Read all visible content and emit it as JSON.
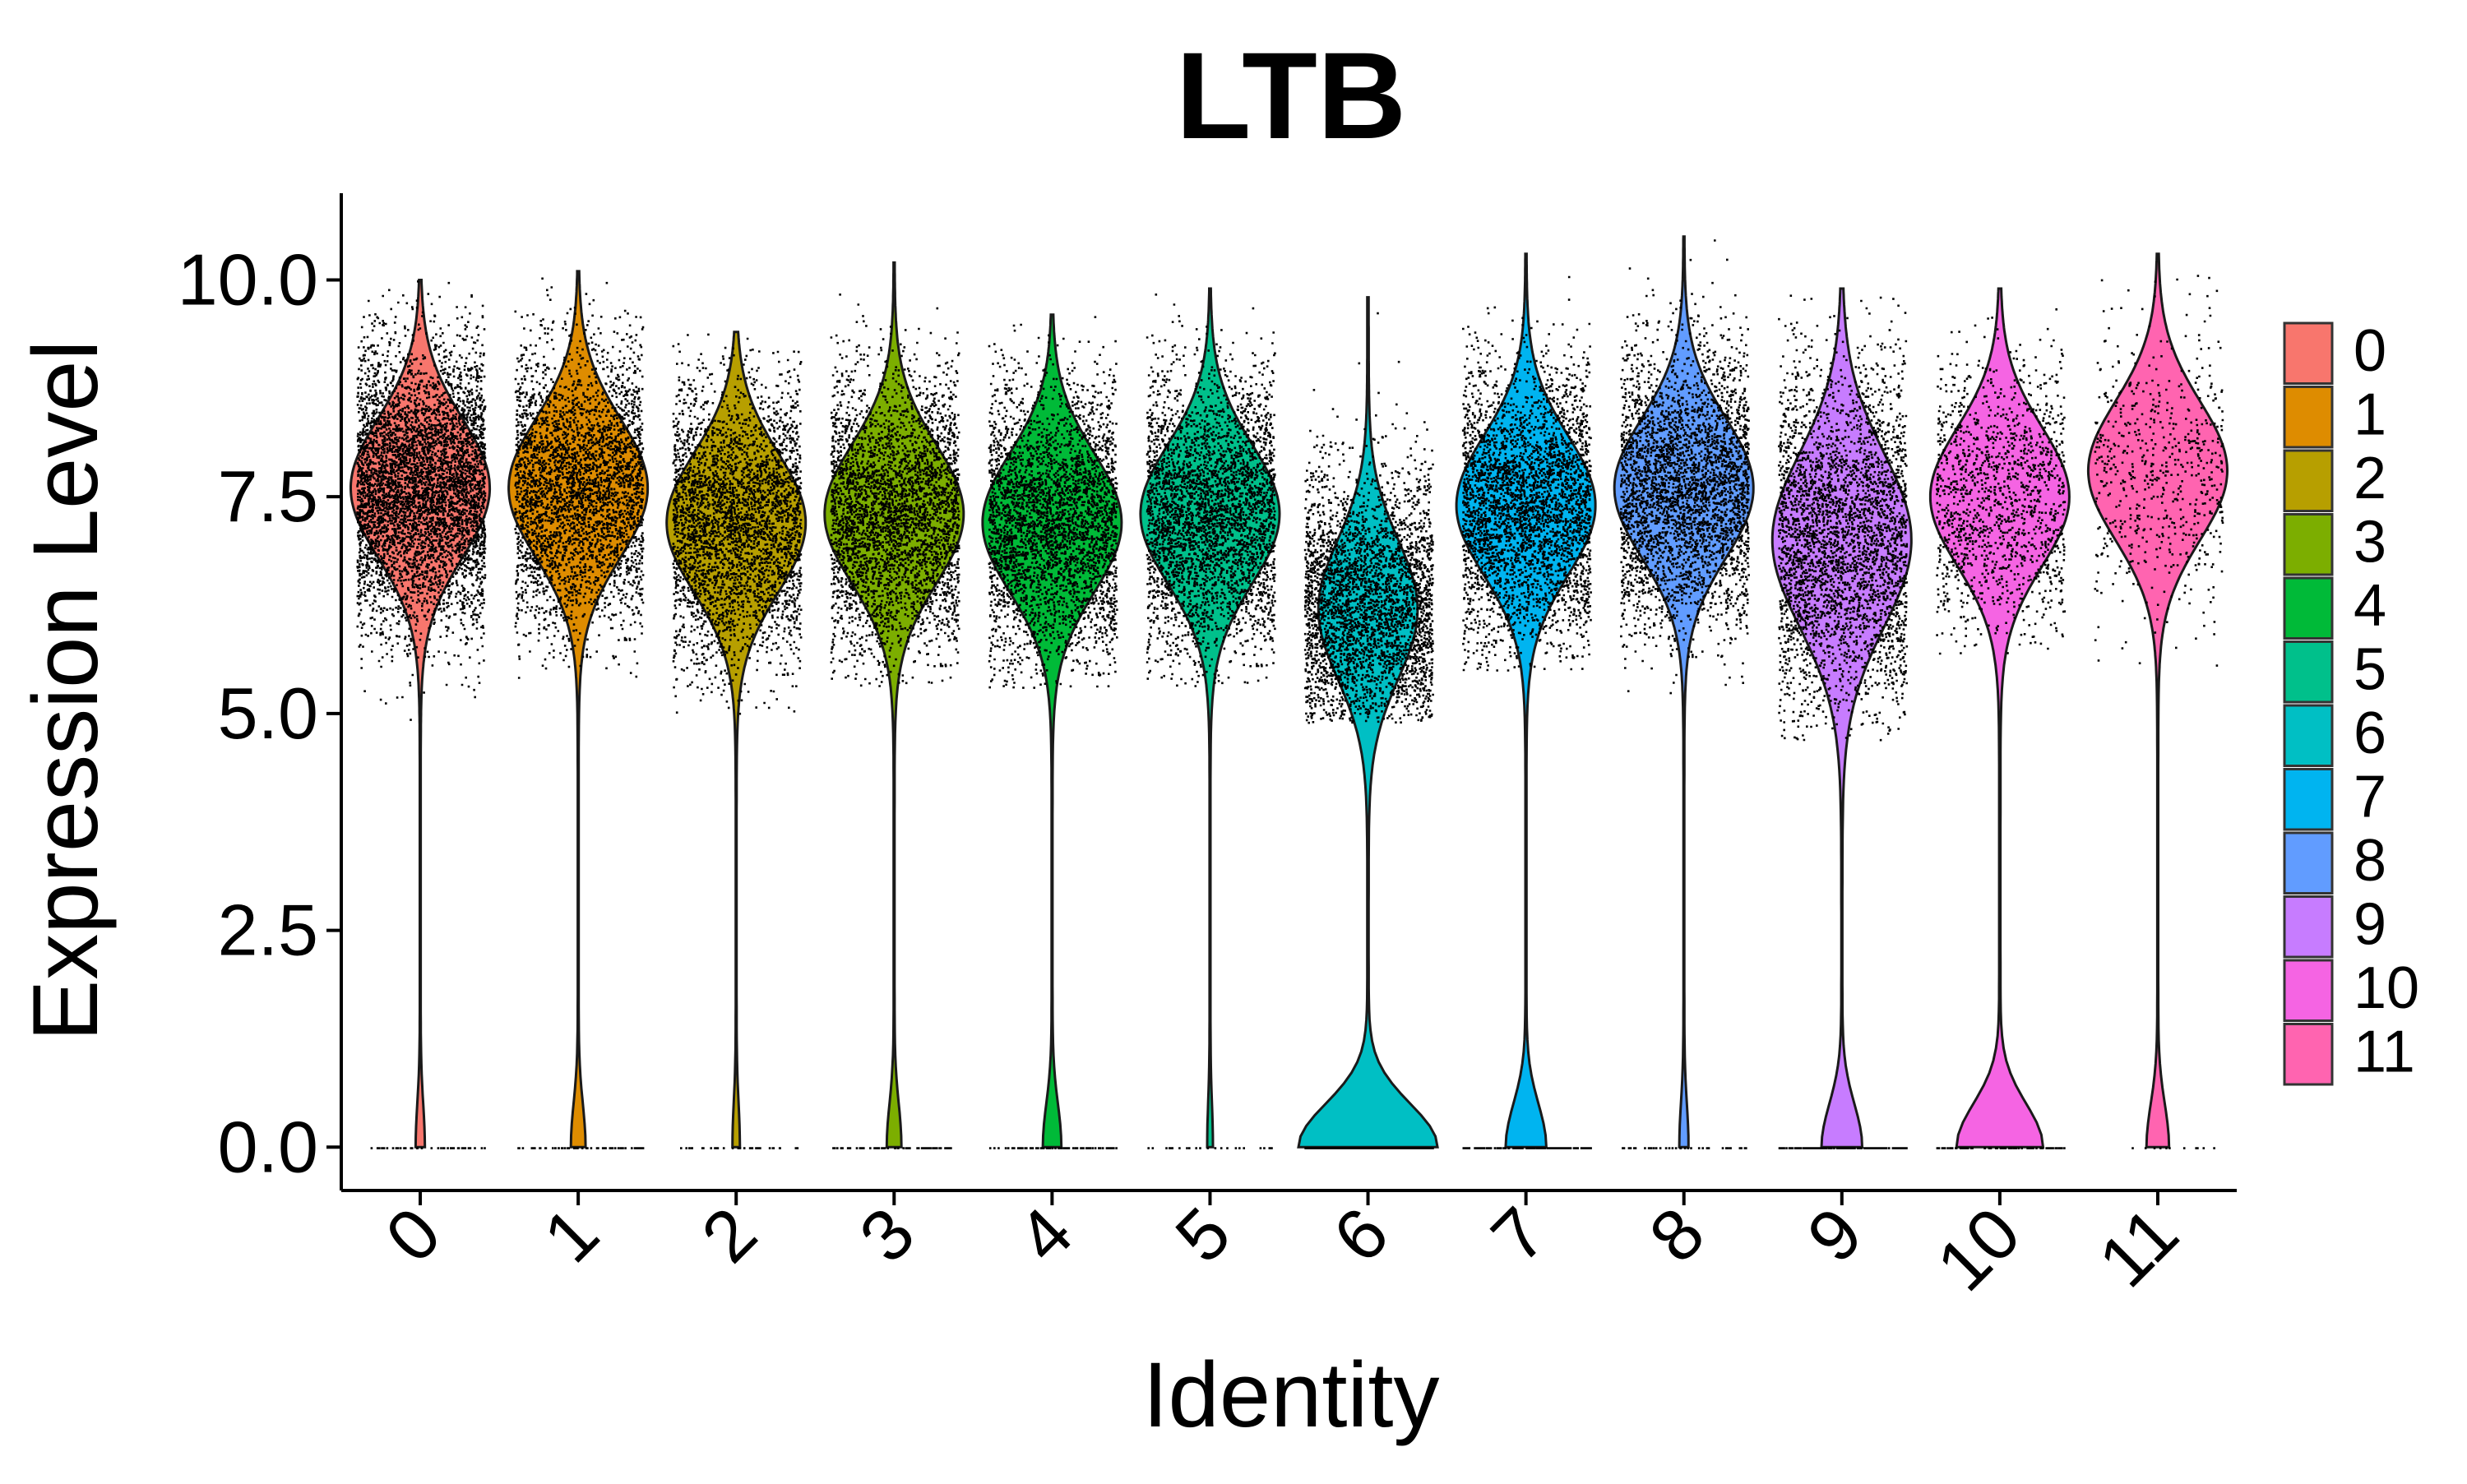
{
  "chart_data": {
    "type": "violin",
    "title": "LTB",
    "xlabel": "Identity",
    "ylabel": "Expression Level",
    "categories": [
      "0",
      "1",
      "2",
      "3",
      "4",
      "5",
      "6",
      "7",
      "8",
      "9",
      "10",
      "11"
    ],
    "ylim": [
      -0.5,
      11
    ],
    "yticks": [
      0.0,
      2.5,
      5.0,
      7.5,
      10.0
    ],
    "ytick_labels": [
      "0.0",
      "2.5",
      "5.0",
      "7.5",
      "10.0"
    ],
    "legend_position": "right",
    "legend": [
      {
        "label": "0",
        "color": "#F8766D"
      },
      {
        "label": "1",
        "color": "#DE8C00"
      },
      {
        "label": "2",
        "color": "#B79F00"
      },
      {
        "label": "3",
        "color": "#7CAE00"
      },
      {
        "label": "4",
        "color": "#00BA38"
      },
      {
        "label": "5",
        "color": "#00C08B"
      },
      {
        "label": "6",
        "color": "#00BFC4"
      },
      {
        "label": "7",
        "color": "#00B4F0"
      },
      {
        "label": "8",
        "color": "#619CFF"
      },
      {
        "label": "9",
        "color": "#C77CFF"
      },
      {
        "label": "10",
        "color": "#F564E3"
      },
      {
        "label": "11",
        "color": "#FF64B0"
      }
    ],
    "series": [
      {
        "category": "0",
        "frac_zero": 0.05,
        "median": 7.6,
        "spread": 0.8,
        "low": 4.8,
        "high": 10.0
      },
      {
        "category": "1",
        "frac_zero": 0.08,
        "median": 7.6,
        "spread": 0.8,
        "low": 5.4,
        "high": 10.1
      },
      {
        "category": "2",
        "frac_zero": 0.04,
        "median": 7.2,
        "spread": 0.8,
        "low": 5.0,
        "high": 9.4
      },
      {
        "category": "3",
        "frac_zero": 0.08,
        "median": 7.3,
        "spread": 0.8,
        "low": 5.3,
        "high": 10.2
      },
      {
        "category": "4",
        "frac_zero": 0.1,
        "median": 7.2,
        "spread": 0.8,
        "low": 5.3,
        "high": 9.6
      },
      {
        "category": "5",
        "frac_zero": 0.03,
        "median": 7.3,
        "spread": 0.8,
        "low": 5.3,
        "high": 9.9
      },
      {
        "category": "6",
        "frac_zero": 0.55,
        "median": 6.2,
        "spread": 0.8,
        "low": 4.9,
        "high": 9.8
      },
      {
        "category": "7",
        "frac_zero": 0.2,
        "median": 7.4,
        "spread": 0.8,
        "low": 5.5,
        "high": 10.3
      },
      {
        "category": "8",
        "frac_zero": 0.05,
        "median": 7.6,
        "spread": 0.8,
        "low": 5.2,
        "high": 10.5
      },
      {
        "category": "9",
        "frac_zero": 0.2,
        "median": 7.0,
        "spread": 1.0,
        "low": 4.7,
        "high": 9.9
      },
      {
        "category": "10",
        "frac_zero": 0.35,
        "median": 7.5,
        "spread": 0.8,
        "low": 5.7,
        "high": 9.9
      },
      {
        "category": "11",
        "frac_zero": 0.12,
        "median": 7.8,
        "spread": 0.8,
        "low": 5.5,
        "high": 10.3
      }
    ]
  }
}
